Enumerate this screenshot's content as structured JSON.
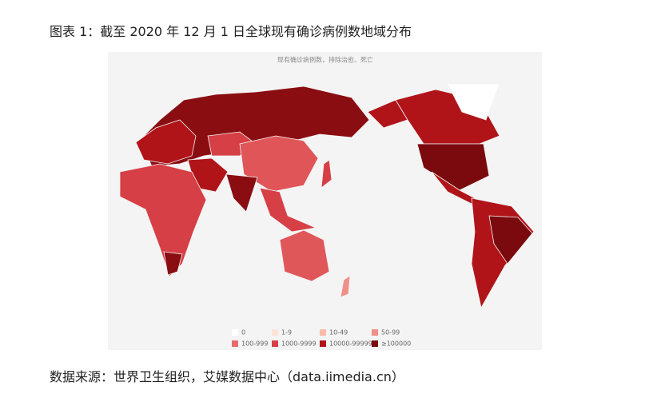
{
  "title": "图表 1：截至 2020 年 12 月 1 日全球现有确诊病例数地域分布",
  "map": {
    "subtitle": "现有确诊病例数，排除治愈、死亡",
    "legend": [
      {
        "label": "0",
        "color": "#ffffff"
      },
      {
        "label": "1-9",
        "color": "#fde3d6"
      },
      {
        "label": "10-49",
        "color": "#f8bba9"
      },
      {
        "label": "50-99",
        "color": "#f09088"
      },
      {
        "label": "100-999",
        "color": "#e66b6b"
      },
      {
        "label": "1000-9999",
        "color": "#d63f45"
      },
      {
        "label": "10000-99999",
        "color": "#b01419"
      },
      {
        "label": "≥100000",
        "color": "#7a0a0e"
      }
    ]
  },
  "source": "数据来源：世界卫生组织，艾媒数据中心（data.iimedia.cn）"
}
